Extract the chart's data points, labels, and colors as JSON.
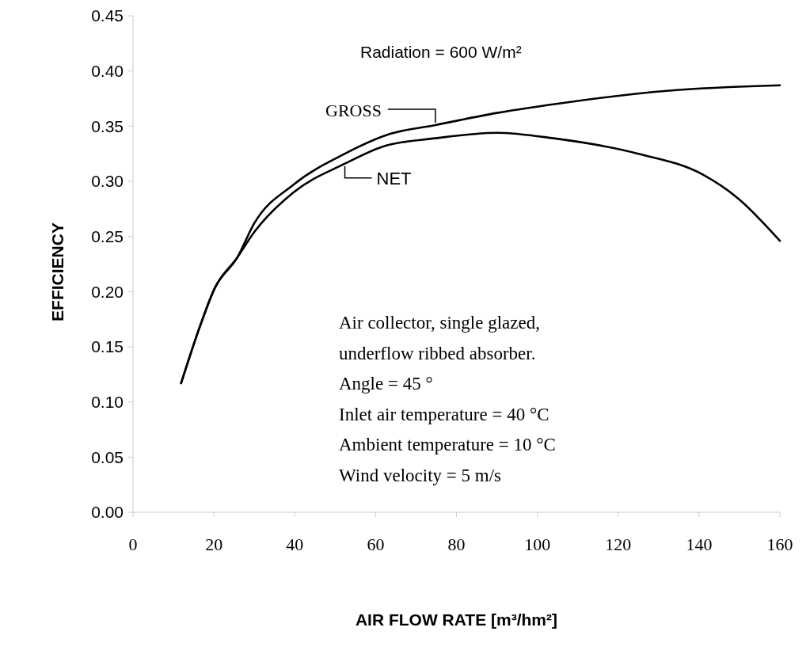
{
  "chart_data": {
    "type": "line",
    "xlabel": "AIR FLOW RATE [m³/hm²]",
    "ylabel": "EFFICIENCY",
    "xlim": [
      0,
      160
    ],
    "xticks": [
      0,
      20,
      40,
      60,
      80,
      100,
      120,
      140,
      160
    ],
    "ylim": [
      0,
      0.45
    ],
    "yticks": [
      {
        "value": 0,
        "label": "0.00"
      },
      {
        "value": 0.05,
        "label": "0.05"
      },
      {
        "value": 0.1,
        "label": "0.10"
      },
      {
        "value": 0.15,
        "label": "0.15"
      },
      {
        "value": 0.2,
        "label": "0.20"
      },
      {
        "value": 0.25,
        "label": "0.25"
      },
      {
        "value": 0.3,
        "label": "0.30"
      },
      {
        "value": 0.35,
        "label": "0.35"
      },
      {
        "value": 0.4,
        "label": "0.40"
      },
      {
        "value": 0.45,
        "label": "0.45"
      }
    ],
    "series": [
      {
        "name": "GROSS",
        "color": "#000000",
        "x": [
          11.9,
          16.7,
          20.2,
          25.8,
          30,
          39.7,
          52.4,
          63.6,
          74.8,
          90,
          108.2,
          132,
          160
        ],
        "values": [
          0.117,
          0.17,
          0.203,
          0.231,
          0.262,
          0.297,
          0.325,
          0.343,
          0.351,
          0.362,
          0.372,
          0.382,
          0.387
        ]
      },
      {
        "name": "NET",
        "color": "#000000",
        "x": [
          11.9,
          16.7,
          20.2,
          25.8,
          30,
          39.7,
          52.4,
          62.2,
          74.8,
          90,
          104,
          125,
          141,
          149.5,
          160
        ],
        "values": [
          0.117,
          0.17,
          0.203,
          0.231,
          0.254,
          0.29,
          0.316,
          0.332,
          0.339,
          0.344,
          0.339,
          0.325,
          0.306,
          0.285,
          0.246
        ]
      }
    ],
    "annotations": [
      "Radiation = 600 W/m²",
      "Air collector, single glazed,",
      "underflow ribbed absorber.",
      "Angle = 45 °",
      "Inlet air temperature = 40 °C",
      "Ambient temperature = 10 °C",
      "Wind velocity = 5 m/s"
    ],
    "grid": false,
    "marker": "none",
    "line_style": "solid"
  }
}
